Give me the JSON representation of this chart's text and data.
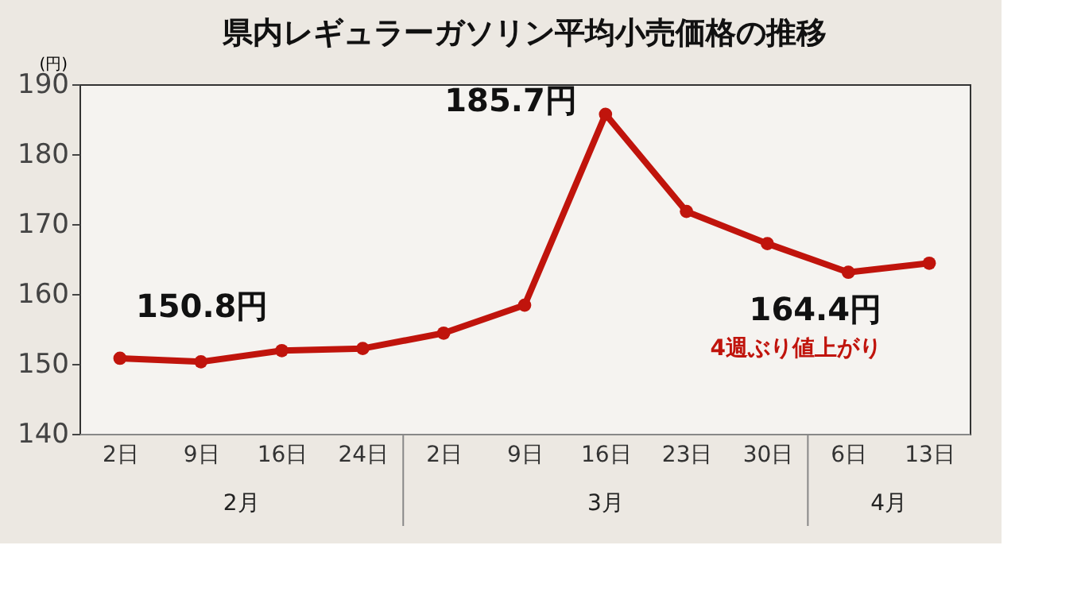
{
  "chart_data": {
    "type": "line",
    "title": "県内レギュラーガソリン平均小売価格の推移",
    "ylabel": "(円)",
    "categories": [
      "2日",
      "9日",
      "16日",
      "24日",
      "2日",
      "9日",
      "16日",
      "23日",
      "30日",
      "6日",
      "13日"
    ],
    "series": [
      {
        "color": "#c0140c",
        "values": [
          150.8,
          150.3,
          151.9,
          152.2,
          154.4,
          158.4,
          185.7,
          171.8,
          167.2,
          163.1,
          164.4
        ],
        "value_labels": [
          "150.8円",
          null,
          null,
          null,
          null,
          null,
          "185.7円",
          null,
          null,
          null,
          "164.4円"
        ]
      }
    ],
    "ylim": [
      140,
      190
    ],
    "yticks": [
      140,
      150,
      160,
      170,
      180,
      190
    ],
    "grid": false,
    "marker": "circle",
    "line_style": "solid",
    "annotations": [
      "2月",
      "3月",
      "4月",
      "4週ぶり値上がり"
    ]
  }
}
